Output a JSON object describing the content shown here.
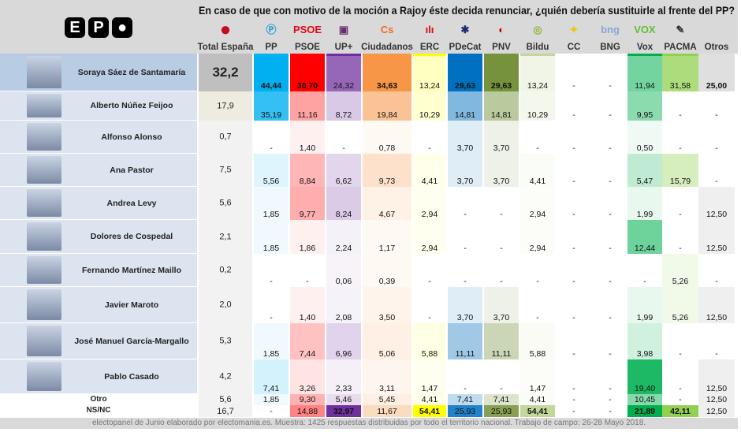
{
  "logo": "EPO",
  "title": "En caso de que con motivo de la moción a Rajoy éste decida renunciar, ¿quién debería sustituirle al frente del PP?",
  "columns": [
    {
      "label": "Total España",
      "icon": "spain-flag-icon",
      "color": "#bfbfbf"
    },
    {
      "label": "PP",
      "icon": "pp-logo-icon",
      "color": "#00b0f0"
    },
    {
      "label": "PSOE",
      "icon": "psoe-logo-icon",
      "color": "#ff0000"
    },
    {
      "label": "UP+",
      "icon": "podemos-logo-icon",
      "color": "#7030a0"
    },
    {
      "label": "Ciudadanos",
      "icon": "cs-logo-icon",
      "color": "#f79646"
    },
    {
      "label": "ERC",
      "icon": "erc-logo-icon",
      "color": "#ffff00"
    },
    {
      "label": "PDeCat",
      "icon": "pdecat-logo-icon",
      "color": "#0070c0"
    },
    {
      "label": "PNV",
      "icon": "pnv-logo-icon",
      "color": "#76923c"
    },
    {
      "label": "Bildu",
      "icon": "bildu-logo-icon",
      "color": "#c4d79b"
    },
    {
      "label": "CC",
      "icon": "cc-logo-icon",
      "color": "#ffffff"
    },
    {
      "label": "BNG",
      "icon": "bng-logo-icon",
      "color": "#ffffff"
    },
    {
      "label": "Vox",
      "icon": "vox-logo-icon",
      "color": "#00b050"
    },
    {
      "label": "PACMA",
      "icon": "pacma-logo-icon",
      "color": "#92d050"
    },
    {
      "label": "Otros",
      "icon": "",
      "color": "#d9d9d9"
    }
  ],
  "rows": [
    {
      "name": "Soraya Sáez de Santamaría",
      "total": "32,2",
      "values": [
        "44,44",
        "30,70",
        "24,32",
        "34,63",
        "13,24",
        "29,63",
        "29,63",
        "13,24",
        "-",
        "-",
        "11,94",
        "31,58",
        "25,00"
      ]
    },
    {
      "name": "Alberto Núñez Feijoo",
      "total": "17,9",
      "values": [
        "35,19",
        "11,16",
        "8,72",
        "19,84",
        "10,29",
        "14,81",
        "14,81",
        "10,29",
        "-",
        "-",
        "9,95",
        "-",
        "-"
      ]
    },
    {
      "name": "Alfonso Alonso",
      "total": "0,7",
      "values": [
        "-",
        "1,40",
        "-",
        "0,78",
        "-",
        "3,70",
        "3,70",
        "-",
        "-",
        "-",
        "0,50",
        "-",
        "-"
      ]
    },
    {
      "name": "Ana Pastor",
      "total": "7,5",
      "values": [
        "5,56",
        "8,84",
        "6,62",
        "9,73",
        "4,41",
        "3,70",
        "3,70",
        "4,41",
        "-",
        "-",
        "5,47",
        "15,79",
        "-"
      ]
    },
    {
      "name": "Andrea Levy",
      "total": "5,6",
      "values": [
        "1,85",
        "9,77",
        "8,24",
        "4,67",
        "2,94",
        "-",
        "-",
        "2,94",
        "-",
        "-",
        "1,99",
        "-",
        "12,50"
      ]
    },
    {
      "name": "Dolores de Cospedal",
      "total": "2,1",
      "values": [
        "1,85",
        "1,86",
        "2,24",
        "1,17",
        "2,94",
        "-",
        "-",
        "2,94",
        "-",
        "-",
        "12,44",
        "-",
        "12,50"
      ]
    },
    {
      "name": "Fernando Martínez Maillo",
      "total": "0,2",
      "values": [
        "-",
        "-",
        "0,06",
        "0,39",
        "-",
        "-",
        "-",
        "-",
        "-",
        "-",
        "-",
        "5,26",
        "-"
      ]
    },
    {
      "name": "Javier Maroto",
      "total": "2,0",
      "values": [
        "-",
        "1,40",
        "2,08",
        "3,50",
        "-",
        "3,70",
        "3,70",
        "-",
        "-",
        "-",
        "1,99",
        "5,26",
        "12,50"
      ]
    },
    {
      "name": "José Manuel García-Margallo",
      "total": "5,3",
      "values": [
        "1,85",
        "7,44",
        "6,96",
        "5,06",
        "5,88",
        "11,11",
        "11,11",
        "5,88",
        "-",
        "-",
        "3,98",
        "-",
        "-"
      ]
    },
    {
      "name": "Pablo Casado",
      "total": "4,2",
      "values": [
        "7,41",
        "3,26",
        "2,33",
        "3,11",
        "1,47",
        "-",
        "-",
        "1,47",
        "-",
        "-",
        "19,40",
        "-",
        "12,50"
      ]
    },
    {
      "name": "Otro",
      "total": "5,6",
      "values": [
        "1,85",
        "9,30",
        "5,46",
        "5,45",
        "4,41",
        "7,41",
        "7,41",
        "4,41",
        "-",
        "-",
        "10,45",
        "-",
        "12,50"
      ]
    },
    {
      "name": "NS/NC",
      "total": "16,7",
      "values": [
        "-",
        "14,88",
        "32,97",
        "11,67",
        "54,41",
        "25,93",
        "25,93",
        "54,41",
        "-",
        "-",
        "21,89",
        "42,11",
        "12,50"
      ]
    }
  ],
  "footer": "electopanel de Junio elaborado por electomania.es. Muestra: 1425 respuestas distribuidas por todo el territorio nacional. Trabajo de campo: 26-28 Mayo 2018."
}
